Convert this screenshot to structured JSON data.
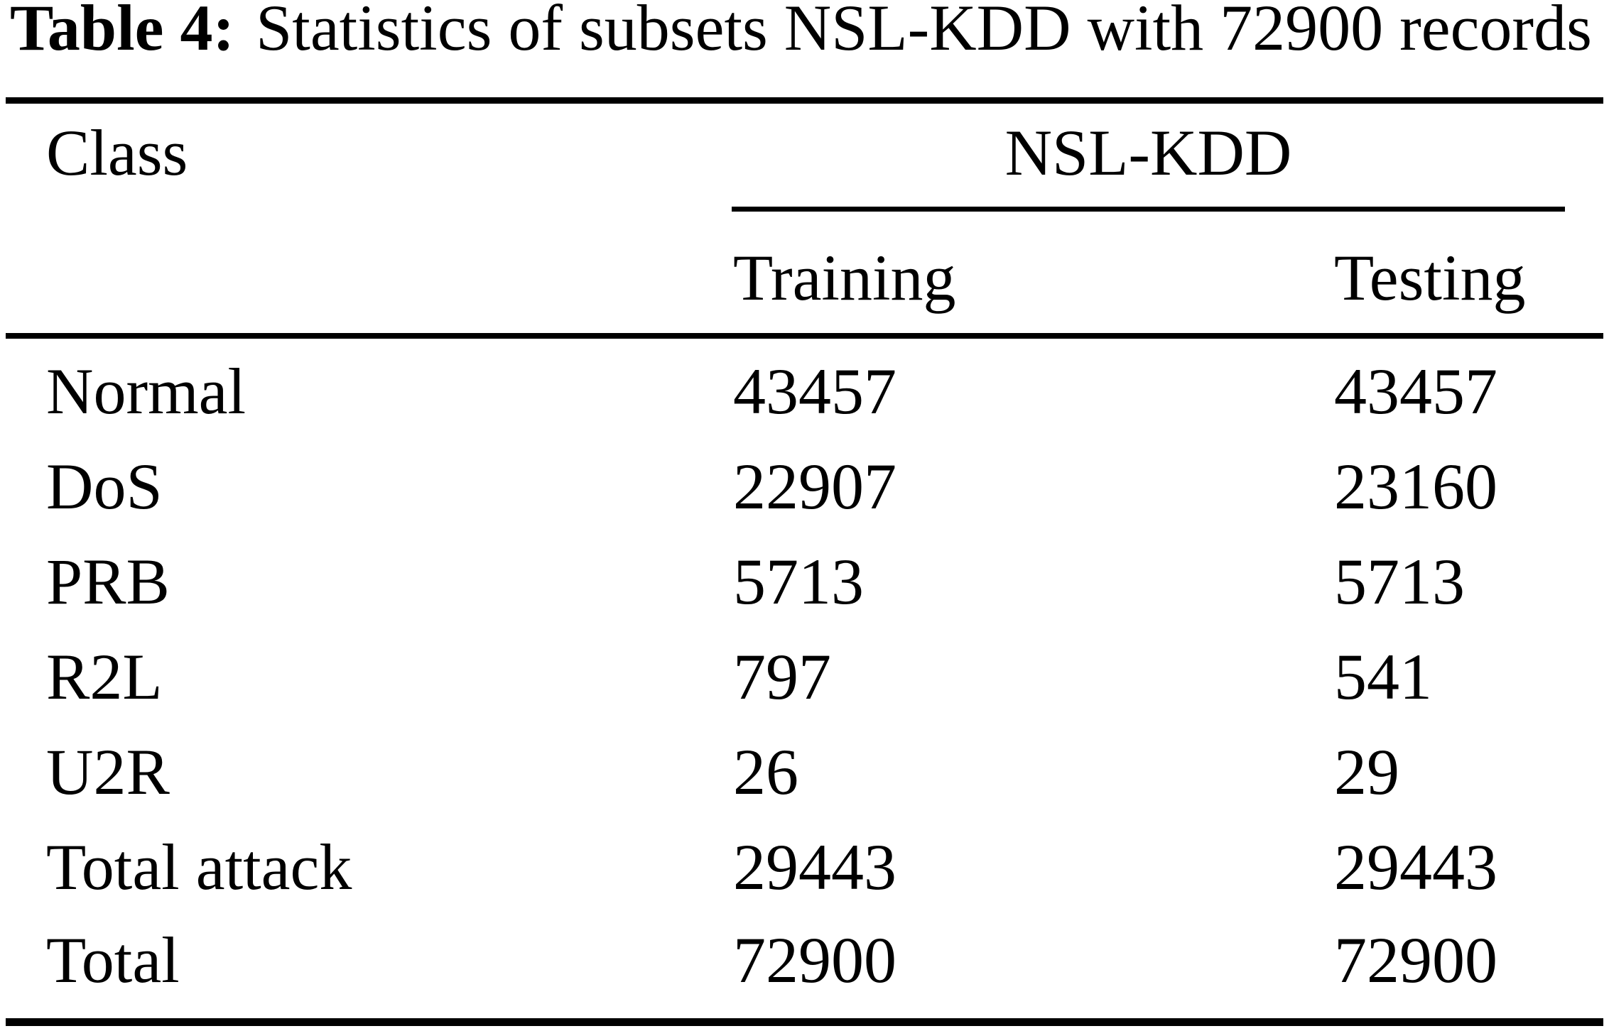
{
  "caption": {
    "label": "Table 4:",
    "text": "Statistics of subsets NSL-KDD with 72900 records"
  },
  "table": {
    "class_header": "Class",
    "group_header": "NSL-KDD",
    "columns": [
      "Training",
      "Testing"
    ],
    "rows": [
      {
        "class": "Normal",
        "training": "43457",
        "testing": "43457"
      },
      {
        "class": "DoS",
        "training": "22907",
        "testing": "23160"
      },
      {
        "class": "PRB",
        "training": "5713",
        "testing": "5713"
      },
      {
        "class": "R2L",
        "training": "797",
        "testing": "541"
      },
      {
        "class": "U2R",
        "training": "26",
        "testing": "29"
      },
      {
        "class": "Total attack",
        "training": "29443",
        "testing": "29443"
      },
      {
        "class": "Total",
        "training": "72900",
        "testing": "72900"
      }
    ]
  },
  "colors": {
    "text": "#000000",
    "background": "#ffffff"
  }
}
